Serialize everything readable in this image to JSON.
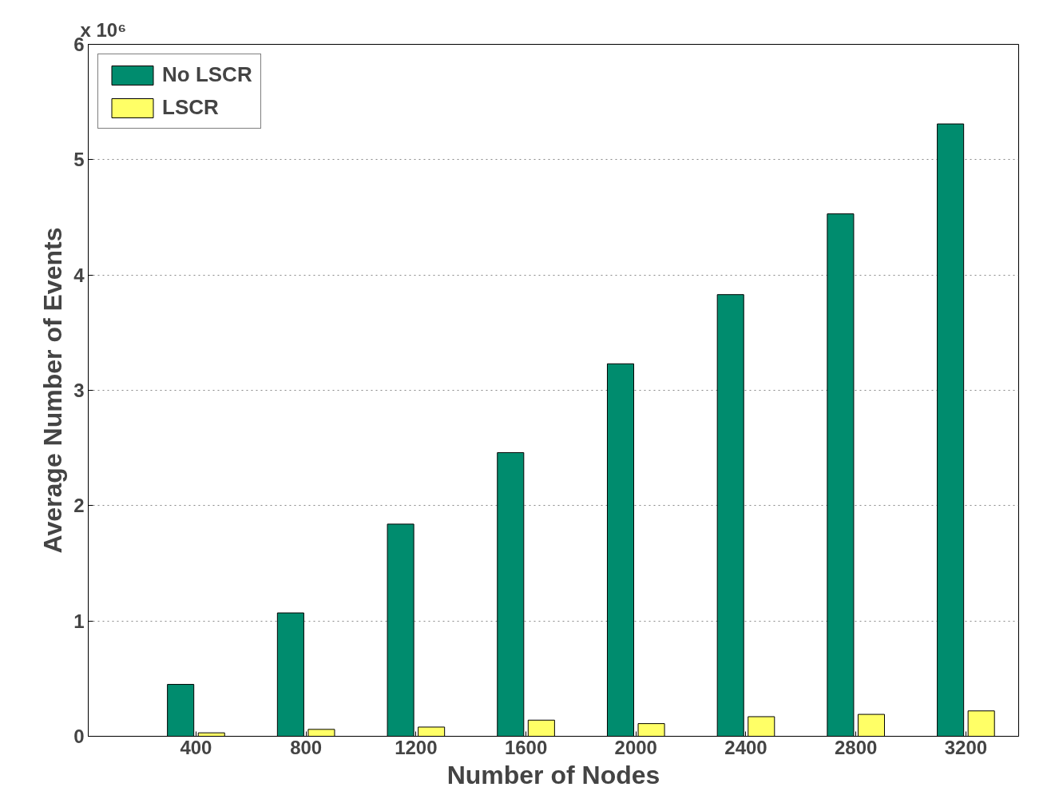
{
  "chart_data": {
    "type": "bar",
    "xlabel": "Number of Nodes",
    "ylabel": "Average Number of Events",
    "annotations": [
      "x 10⁶"
    ],
    "categories": [
      "400",
      "800",
      "1200",
      "1600",
      "2000",
      "2400",
      "2800",
      "3200"
    ],
    "series": [
      {
        "name": "No LSCR",
        "color": "#008c6e",
        "values": [
          0.45,
          1.07,
          1.84,
          2.46,
          3.23,
          3.83,
          4.53,
          5.31
        ]
      },
      {
        "name": "LSCR",
        "color": "#ffff66",
        "values": [
          0.03,
          0.06,
          0.08,
          0.14,
          0.11,
          0.17,
          0.19,
          0.22
        ]
      }
    ],
    "ylim": [
      0,
      6
    ],
    "yticks": [
      0,
      1,
      2,
      3,
      4,
      5,
      6
    ],
    "grid": "y",
    "legend": "top left"
  }
}
